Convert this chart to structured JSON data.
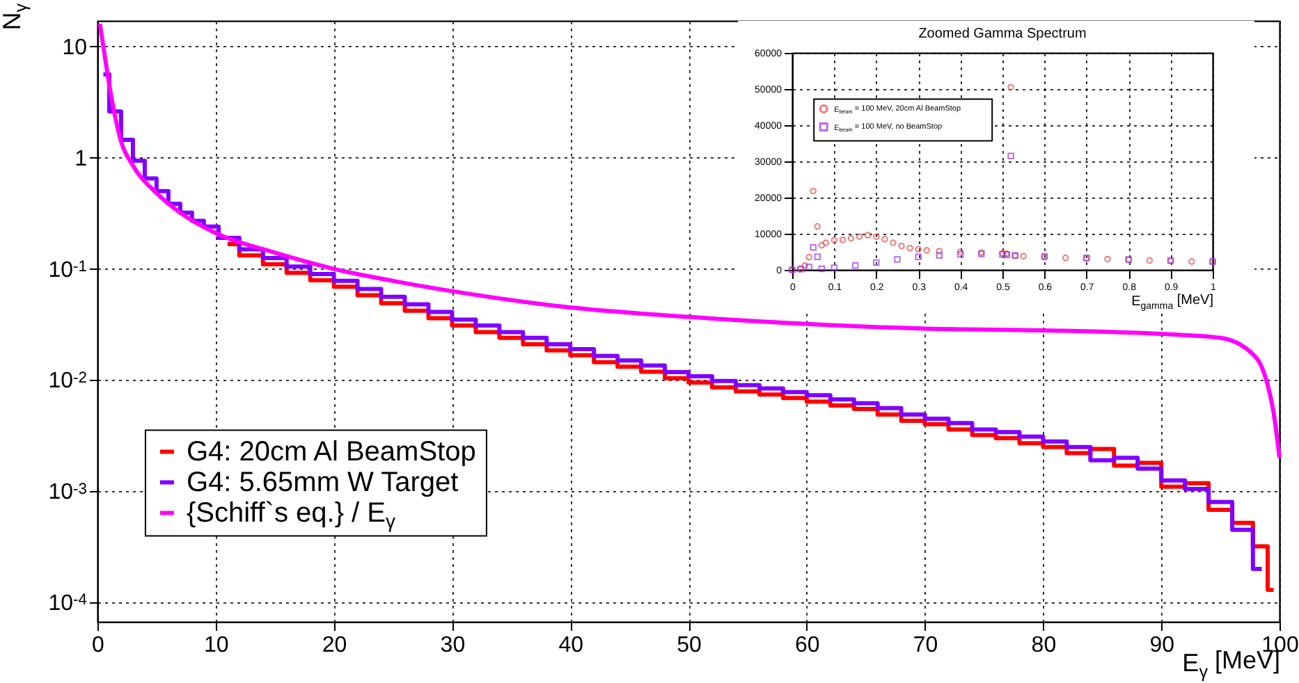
{
  "chart_data": [
    {
      "type": "step",
      "xlabel": "E$_{γ}$ [MeV]",
      "ylabel": "N$_{γ}$",
      "xlim": [
        0,
        100
      ],
      "ylim": [
        6.7e-05,
        17
      ],
      "xticks": [
        0,
        10,
        20,
        30,
        40,
        50,
        60,
        70,
        80,
        90,
        100
      ],
      "yticks": [
        {
          "value": 0.0001,
          "label": "10$^{-4}$"
        },
        {
          "value": 0.001,
          "label": "10$^{-3}$"
        },
        {
          "value": 0.01,
          "label": "10$^{-2}$"
        },
        {
          "value": 0.1,
          "label": "10$^{-1}$"
        },
        1,
        10
      ],
      "log": "y",
      "grid": true,
      "legend": "bottom left",
      "x": [
        0.5,
        1.5,
        2.5,
        3.5,
        4.5,
        5.5,
        6.5,
        7.5,
        8.5,
        9.5,
        11,
        13,
        15,
        17,
        19,
        21,
        23,
        25,
        27,
        29,
        31,
        33,
        35,
        37,
        39,
        41,
        43,
        45,
        47,
        49,
        51,
        53,
        55,
        57,
        59,
        61,
        63,
        65,
        67,
        69,
        71,
        73,
        75,
        77,
        79,
        81,
        83,
        85,
        87,
        89,
        91,
        93,
        95,
        97,
        98.5,
        99.5
      ],
      "series": [
        {
          "name": "G4: 20cm Al BeamStop",
          "type": "step",
          "color": "#ff0000",
          "values": [
            null,
            null,
            null,
            null,
            null,
            null,
            null,
            null,
            null,
            null,
            0.167,
            0.132,
            0.11,
            0.092,
            0.079,
            0.069,
            0.058,
            0.049,
            0.042,
            0.036,
            0.031,
            0.027,
            0.024,
            0.021,
            0.0185,
            0.0167,
            0.0145,
            0.0132,
            0.0119,
            0.0104,
            0.0095,
            0.0086,
            0.0079,
            0.0074,
            0.0069,
            0.0064,
            0.0059,
            0.0055,
            0.0049,
            0.0043,
            0.004,
            0.0036,
            0.0032,
            0.003,
            0.0027,
            0.0025,
            0.0022,
            0.0024,
            0.0017,
            0.0018,
            0.0011,
            0.00118,
            0.00068,
            0.00052,
            0.00032,
            0.00013
          ]
        },
        {
          "name": "G4: 5.65mm W Target",
          "type": "step",
          "color": "#8000ff",
          "values": [
            5.6,
            2.6,
            1.45,
            0.94,
            0.65,
            0.5,
            0.385,
            0.32,
            0.27,
            0.24,
            0.19,
            0.15,
            0.125,
            0.105,
            0.09,
            0.078,
            0.066,
            0.056,
            0.048,
            0.041,
            0.035,
            0.031,
            0.027,
            0.024,
            0.021,
            0.019,
            0.0165,
            0.015,
            0.0135,
            0.0118,
            0.0108,
            0.0098,
            0.009,
            0.0084,
            0.0078,
            0.0073,
            0.0067,
            0.0062,
            0.0056,
            0.0049,
            0.0045,
            0.0041,
            0.0036,
            0.0034,
            0.0031,
            0.0028,
            0.0025,
            0.0019,
            0.002,
            0.0016,
            0.00125,
            0.00105,
            0.0008,
            0.00045,
            0.0002,
            null
          ]
        },
        {
          "name": " {Schiff`s eq.} / E$_{γ}$",
          "type": "line",
          "color": "#ff00ff",
          "x": [
            0.2,
            0.5,
            1,
            2,
            3,
            5,
            7,
            10,
            15,
            20,
            25,
            30,
            40,
            50,
            60,
            70,
            80,
            90,
            95,
            98,
            99,
            99.5,
            100
          ],
          "values": [
            16,
            10,
            4.5,
            1.4,
            0.85,
            0.48,
            0.32,
            0.21,
            0.14,
            0.1,
            0.078,
            0.063,
            0.045,
            0.037,
            0.032,
            0.029,
            0.028,
            0.026,
            0.024,
            0.016,
            0.009,
            0.0051,
            0.002
          ]
        }
      ]
    },
    {
      "type": "scatter",
      "title": "Zoomed Gamma Spectrum",
      "xlabel": "E$_{gamma}$ [MeV]",
      "xlim": [
        0,
        1
      ],
      "ylim": [
        0,
        60000
      ],
      "xticks": [
        0,
        0.1,
        0.2,
        0.3,
        0.4,
        0.5,
        0.6,
        0.7,
        0.8,
        0.9,
        1
      ],
      "yticks": [
        0,
        10000,
        20000,
        30000,
        40000,
        50000,
        60000
      ],
      "grid": true,
      "legend": "top left",
      "series": [
        {
          "name": "E$_{beam}$ = 100 MeV, 20cm Al BeamStop",
          "color": "#e8413c",
          "marker": "circle",
          "x": [
            0,
            0.02,
            0.03,
            0.04,
            0.05,
            0.06,
            0.07,
            0.08,
            0.1,
            0.12,
            0.14,
            0.16,
            0.18,
            0.2,
            0.22,
            0.24,
            0.26,
            0.28,
            0.3,
            0.32,
            0.35,
            0.4,
            0.45,
            0.5,
            0.51,
            0.52,
            0.53,
            0.55,
            0.6,
            0.65,
            0.7,
            0.75,
            0.8,
            0.85,
            0.9,
            0.95,
            1
          ],
          "values": [
            0,
            300,
            1200,
            3500,
            21800,
            12000,
            6800,
            7500,
            8200,
            8300,
            8700,
            9200,
            9600,
            9200,
            8500,
            7500,
            6600,
            6000,
            5700,
            5400,
            5200,
            5000,
            4800,
            4600,
            4500,
            50500,
            3900,
            3800,
            3500,
            3300,
            3100,
            3000,
            2800,
            2600,
            2400,
            2300,
            2200
          ]
        },
        {
          "name": "E$_{beam}$ = 100 MeV, no BeamStop",
          "color": "#9b30e0",
          "marker": "square",
          "x": [
            0,
            0.02,
            0.04,
            0.05,
            0.06,
            0.07,
            0.1,
            0.15,
            0.2,
            0.25,
            0.3,
            0.35,
            0.4,
            0.45,
            0.5,
            0.51,
            0.52,
            0.53,
            0.6,
            0.7,
            0.8,
            0.9,
            1
          ],
          "values": [
            0,
            200,
            800,
            6200,
            3600,
            300,
            600,
            1200,
            2000,
            2900,
            3600,
            4000,
            4300,
            4400,
            4300,
            4200,
            31500,
            4000,
            3700,
            3300,
            2900,
            2600,
            2300
          ]
        }
      ]
    }
  ]
}
